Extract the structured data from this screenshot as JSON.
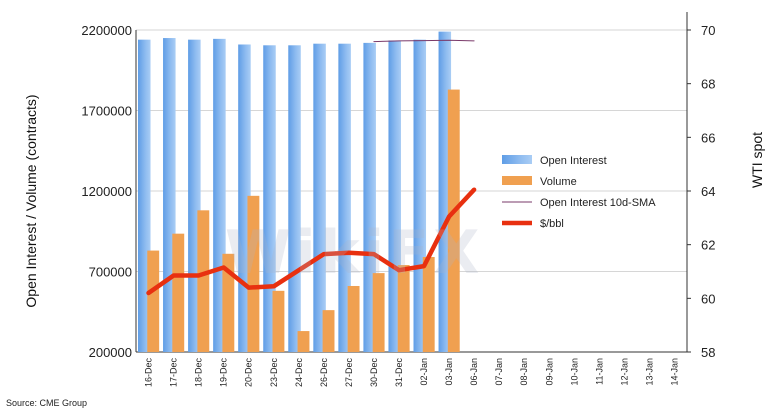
{
  "chart_data": {
    "type": "bar",
    "categories": [
      "16-Dec",
      "17-Dec",
      "18-Dec",
      "19-Dec",
      "20-Dec",
      "23-Dec",
      "24-Dec",
      "26-Dec",
      "27-Dec",
      "30-Dec",
      "31-Dec",
      "02-Jan",
      "03-Jan",
      "06-Jan",
      "07-Jan",
      "08-Jan",
      "09-Jan",
      "10-Jan",
      "11-Jan",
      "12-Jan",
      "13-Jan",
      "14-Jan"
    ],
    "series": [
      {
        "name": "Open Interest",
        "kind": "bar",
        "axis": "left",
        "color": "#6fa8e8",
        "values": [
          2140000,
          2150000,
          2140000,
          2145000,
          2110000,
          2105000,
          2105000,
          2115000,
          2115000,
          2120000,
          2135000,
          2140000,
          2190000,
          null,
          null,
          null,
          null,
          null,
          null,
          null,
          null,
          null
        ]
      },
      {
        "name": "Volume",
        "kind": "bar",
        "axis": "left",
        "color": "#f0a050",
        "values": [
          830000,
          935000,
          1080000,
          810000,
          1170000,
          580000,
          330000,
          460000,
          610000,
          690000,
          740000,
          790000,
          1830000,
          null,
          null,
          null,
          null,
          null,
          null,
          null,
          null,
          null
        ]
      },
      {
        "name": "Open Interest 10d-SMA",
        "kind": "line",
        "axis": "left",
        "color": "#7a3a6a",
        "values": [
          null,
          null,
          null,
          null,
          null,
          null,
          null,
          null,
          null,
          2128000,
          2132000,
          2134000,
          2136000,
          2132000,
          null,
          null,
          null,
          null,
          null,
          null,
          null,
          null
        ]
      },
      {
        "name": "$/bbl",
        "kind": "line",
        "axis": "right",
        "color": "#e83010",
        "values": [
          60.2,
          60.85,
          60.85,
          61.15,
          60.4,
          60.45,
          61.05,
          61.65,
          61.7,
          61.65,
          61.05,
          61.2,
          63.05,
          64.05,
          null,
          null,
          null,
          null,
          null,
          null,
          null,
          null
        ]
      }
    ],
    "ylabel": "Open Interest / Volume (contracts)",
    "ylabel_right": "WTI spot",
    "ylim": [
      200000,
      2200000
    ],
    "yticks": [
      "200000",
      "700000",
      "1200000",
      "1700000",
      "2200000"
    ],
    "ylim_right": [
      58,
      70
    ],
    "yticks_right": [
      "58",
      "60",
      "62",
      "64",
      "66",
      "68",
      "70"
    ],
    "grid": "horizontal",
    "legend_position": "right"
  },
  "source": "Source: CME Group",
  "watermark": "WikiFX"
}
